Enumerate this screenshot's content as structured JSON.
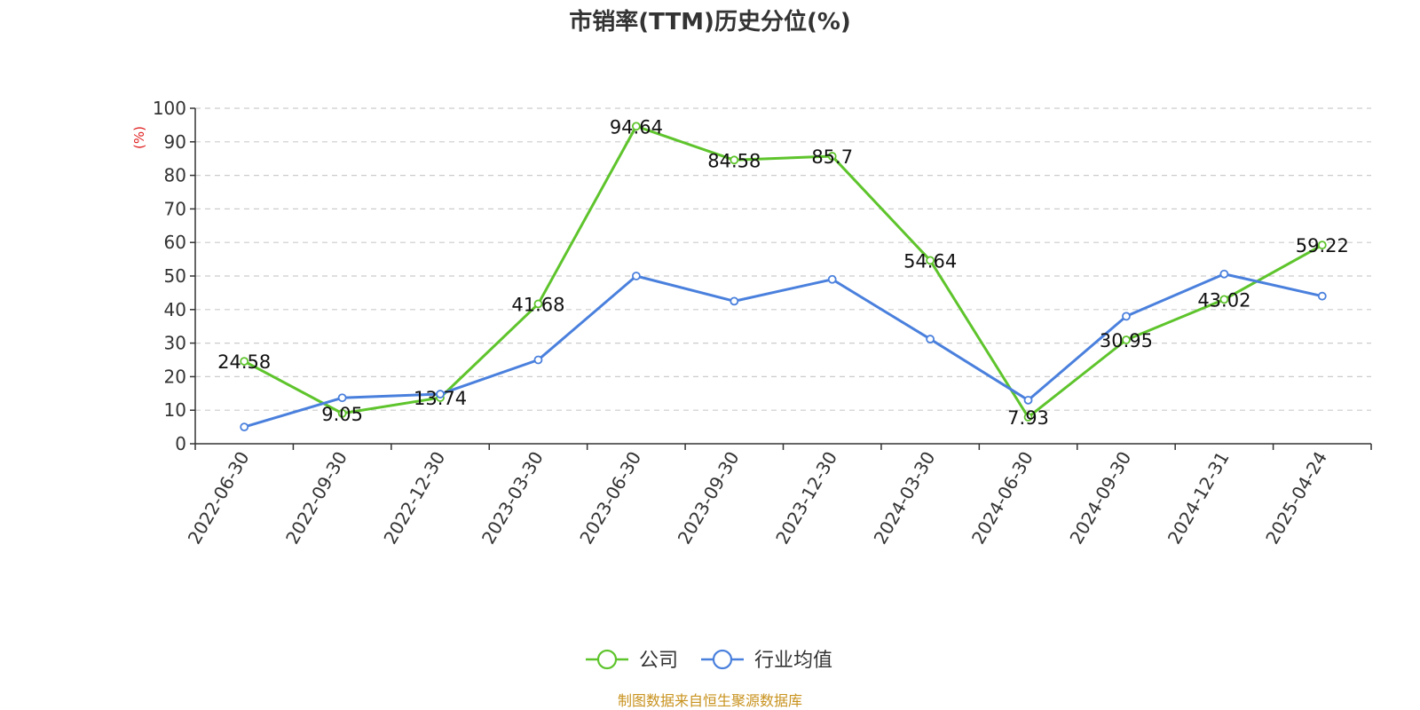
{
  "colors": {
    "company": "#5ec42c",
    "industry": "#4a80dd",
    "unit_label": "#e02020",
    "source_text": "#c8921e",
    "axis": "#333333",
    "grid": "#cccccc"
  },
  "chart_data": {
    "type": "line",
    "title": "市销率(TTM)历史分位(%)",
    "ylabel": "(%)",
    "ylim": [
      0,
      100
    ],
    "yticks": [
      0,
      10,
      20,
      30,
      40,
      50,
      60,
      70,
      80,
      90,
      100
    ],
    "grid": true,
    "legend_position": "bottom-center",
    "categories": [
      "2022-06-30",
      "2022-09-30",
      "2022-12-30",
      "2023-03-30",
      "2023-06-30",
      "2023-09-30",
      "2023-12-30",
      "2024-03-30",
      "2024-06-30",
      "2024-09-30",
      "2024-12-31",
      "2025-04-24"
    ],
    "series": [
      {
        "name": "公司",
        "color_key": "company",
        "values": [
          24.58,
          9.05,
          13.74,
          41.68,
          94.64,
          84.58,
          85.7,
          54.64,
          7.93,
          30.95,
          43.02,
          59.22
        ],
        "labels": [
          "24.58",
          "9.05",
          "13.74",
          "41.68",
          "94.64",
          "84.58",
          "85.7",
          "54.64",
          "7.93",
          "30.95",
          "43.02",
          "59.22"
        ],
        "show_labels": true
      },
      {
        "name": "行业均值",
        "color_key": "industry",
        "values": [
          5.0,
          13.7,
          14.8,
          25.0,
          50.0,
          42.5,
          49.0,
          31.2,
          13.0,
          38.0,
          50.6,
          44.0
        ],
        "show_labels": false
      }
    ]
  },
  "source": "制图数据来自恒生聚源数据库"
}
